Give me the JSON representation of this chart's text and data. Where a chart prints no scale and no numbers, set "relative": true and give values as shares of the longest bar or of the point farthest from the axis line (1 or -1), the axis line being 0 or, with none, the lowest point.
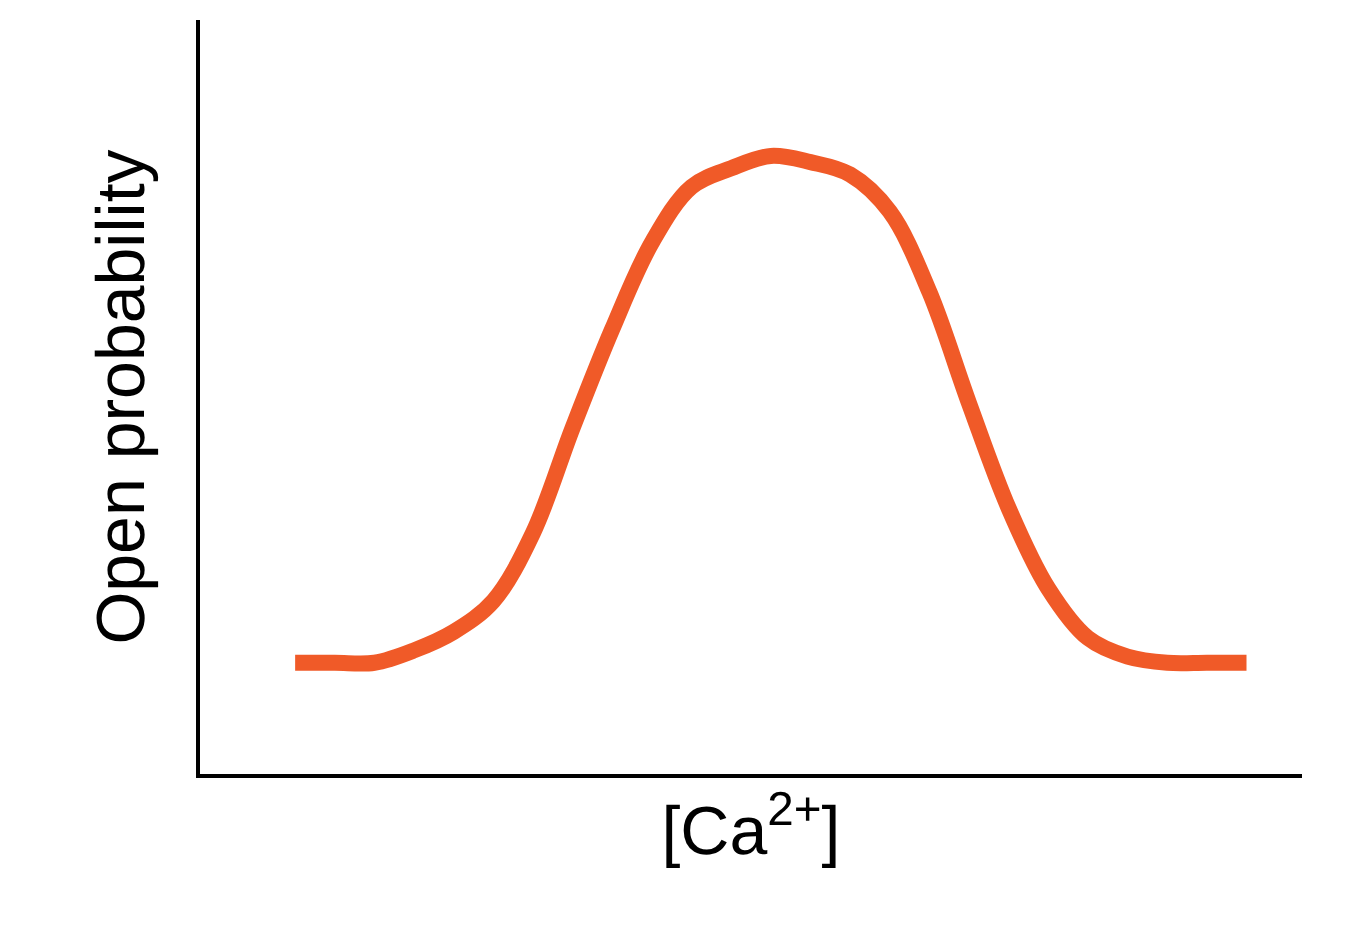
{
  "chart_data": {
    "type": "line",
    "relative": true,
    "xlabel": "[Ca$^{2+}$]",
    "ylabel": "Open probability",
    "categories": [
      null,
      null,
      null,
      null,
      null,
      null,
      null,
      null,
      null,
      null,
      null,
      null,
      null,
      null,
      null,
      null,
      null,
      null,
      null,
      null,
      null,
      null,
      null,
      null,
      null
    ],
    "series": [
      {
        "color": "#f05a28",
        "values": [
          0.18,
          0.18,
          0.18,
          0.2,
          0.23,
          0.28,
          0.39,
          0.56,
          0.72,
          0.86,
          0.95,
          0.98,
          1.0,
          0.99,
          0.97,
          0.91,
          0.78,
          0.6,
          0.43,
          0.3,
          0.22,
          0.19,
          0.18,
          0.18,
          0.18
        ]
      }
    ],
    "legend": false,
    "marker": "none",
    "line_style": "solid",
    "tick_labels": false
  }
}
